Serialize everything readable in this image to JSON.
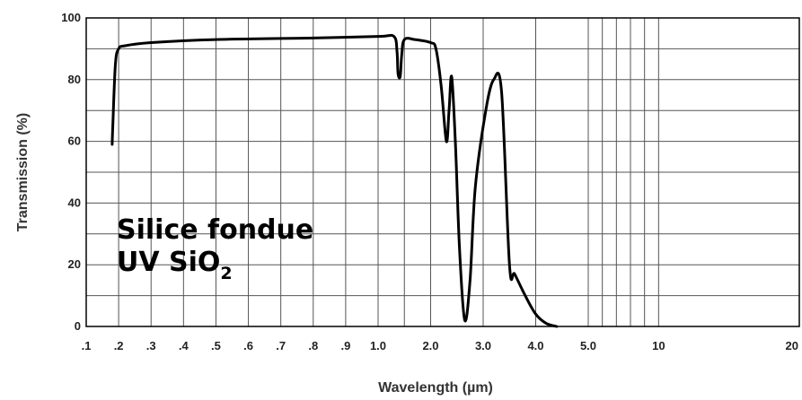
{
  "chart_data": {
    "type": "line",
    "xlabel": "Wavelength (µm)",
    "ylabel": "Transmission (%)",
    "ylim": [
      0,
      100
    ],
    "y_ticks": [
      "0",
      "20",
      "40",
      "60",
      "80",
      "100"
    ],
    "x_ticks": [
      {
        "label": ".1",
        "value": 0.1
      },
      {
        "label": ".2",
        "value": 0.2
      },
      {
        "label": ".3",
        "value": 0.3
      },
      {
        "label": ".4",
        "value": 0.4
      },
      {
        "label": ".5",
        "value": 0.5
      },
      {
        "label": ".6",
        "value": 0.6
      },
      {
        "label": ".7",
        "value": 0.7
      },
      {
        "label": ".8",
        "value": 0.8
      },
      {
        "label": ".9",
        "value": 0.9
      },
      {
        "label": "1.0",
        "value": 1.0
      },
      {
        "label": "2.0",
        "value": 2.0
      },
      {
        "label": "3.0",
        "value": 3.0
      },
      {
        "label": "4.0",
        "value": 4.0
      },
      {
        "label": "5.0",
        "value": 5.0
      },
      {
        "label": "10",
        "value": 10
      },
      {
        "label": "20",
        "value": 20
      }
    ],
    "x_scale": "piecewise: linear 0.1-1.0, linear 1.0-5.0, linear 5.0-20",
    "extra_vertical_gridlines": [
      1.5,
      6,
      7,
      8,
      9
    ],
    "grid": true,
    "annotation": {
      "line1": "Silice fondue",
      "line2_main": "UV SiO",
      "line2_sub": "2"
    },
    "series": [
      {
        "color": "#000000",
        "x": [
          0.18,
          0.182,
          0.19,
          0.2,
          0.22,
          0.3,
          0.5,
          0.8,
          1.0,
          1.3,
          1.36,
          1.38,
          1.42,
          1.45,
          1.5,
          1.7,
          2.0,
          2.1,
          2.2,
          2.3,
          2.35,
          2.4,
          2.47,
          2.55,
          2.65,
          2.75,
          2.85,
          3.05,
          3.2,
          3.35,
          3.5,
          3.6,
          3.8,
          4.0,
          4.2,
          4.4
        ],
        "y": [
          59,
          65,
          85,
          90,
          91,
          92,
          93,
          93.5,
          94,
          94,
          89,
          82,
          81,
          88,
          93,
          93,
          92,
          90,
          78,
          60,
          70,
          81,
          60,
          25,
          2,
          15,
          45,
          70,
          80,
          76,
          20,
          17,
          10,
          4,
          1,
          0
        ]
      }
    ]
  }
}
